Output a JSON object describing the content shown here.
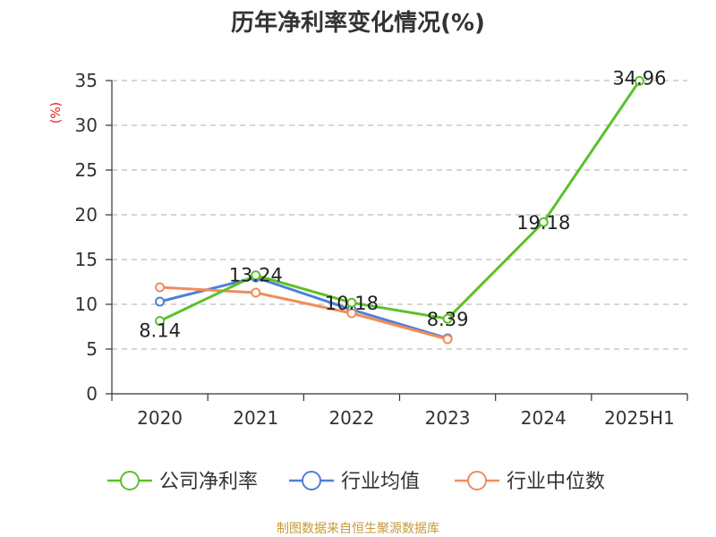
{
  "chart_data": {
    "type": "line",
    "title": "历年净利率变化情况(%)",
    "ylabel": "(%)",
    "categories": [
      "2020",
      "2021",
      "2022",
      "2023",
      "2024",
      "2025H1"
    ],
    "ylim": [
      0,
      35
    ],
    "yticks": [
      0,
      5,
      10,
      15,
      20,
      25,
      30,
      35
    ],
    "grid": true,
    "legend_position": "bottom",
    "series": [
      {
        "name": "公司净利率",
        "color": "#5ac229",
        "values": [
          8.14,
          13.24,
          10.18,
          8.39,
          19.18,
          34.96
        ],
        "labels": [
          "8.14",
          "13.24",
          "10.18",
          "8.39",
          "19.18",
          "34.96"
        ]
      },
      {
        "name": "行业均值",
        "color": "#4e7fd6",
        "values": [
          10.3,
          13.0,
          9.4,
          6.2,
          null,
          null
        ]
      },
      {
        "name": "行业中位数",
        "color": "#f18c5a",
        "values": [
          11.9,
          11.3,
          9.0,
          6.1,
          null,
          null
        ]
      }
    ]
  },
  "source": "制图数据来自恒生聚源数据库"
}
